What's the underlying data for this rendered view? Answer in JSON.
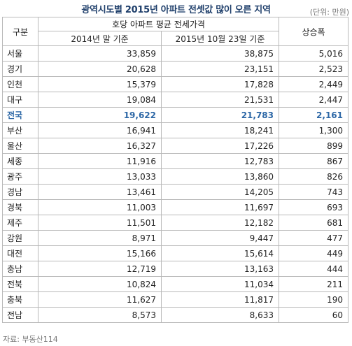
{
  "title": "광역시도별 2015년 아파트 전셋값 많이 오른 지역",
  "unit": "(단위: 만원)",
  "header": {
    "region": "구분",
    "group": "호당 아파트 평균 전세가격",
    "col_2014": "2014년 말 기준",
    "col_2015": "2015년 10월 23일 기준",
    "increase": "상승폭"
  },
  "highlight_color": "#2c67a6",
  "rows": [
    {
      "region": "서울",
      "v2014": "33,859",
      "v2015": "38,875",
      "inc": "5,016"
    },
    {
      "region": "경기",
      "v2014": "20,628",
      "v2015": "23,151",
      "inc": "2,523"
    },
    {
      "region": "인천",
      "v2014": "15,379",
      "v2015": "17,828",
      "inc": "2,449"
    },
    {
      "region": "대구",
      "v2014": "19,084",
      "v2015": "21,531",
      "inc": "2,447"
    },
    {
      "region": "전국",
      "v2014": "19,622",
      "v2015": "21,783",
      "inc": "2,161",
      "highlight": true
    },
    {
      "region": "부산",
      "v2014": "16,941",
      "v2015": "18,241",
      "inc": "1,300"
    },
    {
      "region": "울산",
      "v2014": "16,327",
      "v2015": "17,226",
      "inc": "899"
    },
    {
      "region": "세종",
      "v2014": "11,916",
      "v2015": "12,783",
      "inc": "867"
    },
    {
      "region": "광주",
      "v2014": "13,033",
      "v2015": "13,860",
      "inc": "826"
    },
    {
      "region": "경남",
      "v2014": "13,461",
      "v2015": "14,205",
      "inc": "743"
    },
    {
      "region": "경북",
      "v2014": "11,003",
      "v2015": "11,697",
      "inc": "693"
    },
    {
      "region": "제주",
      "v2014": "11,501",
      "v2015": "12,182",
      "inc": "681"
    },
    {
      "region": "강원",
      "v2014": "8,971",
      "v2015": "9,447",
      "inc": "477"
    },
    {
      "region": "대전",
      "v2014": "15,166",
      "v2015": "15,614",
      "inc": "449"
    },
    {
      "region": "충남",
      "v2014": "12,719",
      "v2015": "13,163",
      "inc": "444"
    },
    {
      "region": "전북",
      "v2014": "10,824",
      "v2015": "11,034",
      "inc": "211"
    },
    {
      "region": "충북",
      "v2014": "11,627",
      "v2015": "11,817",
      "inc": "190"
    },
    {
      "region": "전남",
      "v2014": "8,573",
      "v2015": "8,633",
      "inc": "60"
    }
  ],
  "source": "자료: 부동산114"
}
